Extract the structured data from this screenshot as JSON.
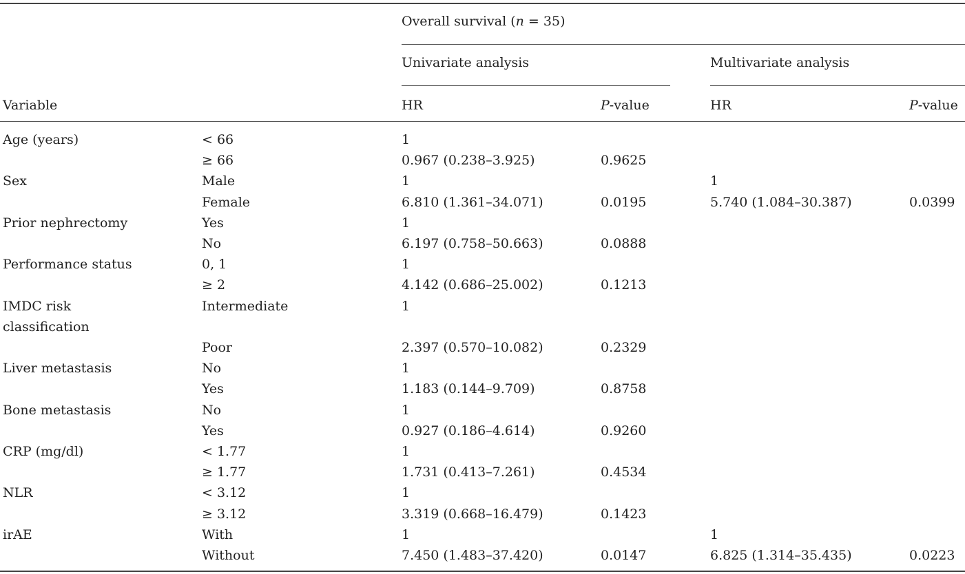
{
  "header": {
    "group_prefix": "Overall survival (",
    "group_n": "n",
    "group_suffix": " = 35)",
    "univariate": "Univariate analysis",
    "multivariate": "Multivariate analysis",
    "variable": "Variable",
    "hr": "HR",
    "p_italic": "P",
    "p_rest": "-value"
  },
  "rows": [
    {
      "variable": "Age (years)",
      "level": "< 66",
      "uni_hr": "1",
      "uni_p": "",
      "multi_hr": "",
      "multi_p": ""
    },
    {
      "variable": "",
      "level": "≥ 66",
      "uni_hr": "0.967 (0.238–3.925)",
      "uni_p": "0.9625",
      "multi_hr": "",
      "multi_p": ""
    },
    {
      "variable": "Sex",
      "level": "Male",
      "uni_hr": "1",
      "uni_p": "",
      "multi_hr": "1",
      "multi_p": ""
    },
    {
      "variable": "",
      "level": "Female",
      "uni_hr": "6.810 (1.361–34.071)",
      "uni_p": "0.0195",
      "multi_hr": "5.740 (1.084–30.387)",
      "multi_p": "0.0399"
    },
    {
      "variable": "Prior nephrectomy",
      "level": "Yes",
      "uni_hr": "1",
      "uni_p": "",
      "multi_hr": "",
      "multi_p": ""
    },
    {
      "variable": "",
      "level": "No",
      "uni_hr": "6.197 (0.758–50.663)",
      "uni_p": "0.0888",
      "multi_hr": "",
      "multi_p": ""
    },
    {
      "variable": "Performance status",
      "level": "0, 1",
      "uni_hr": "1",
      "uni_p": "",
      "multi_hr": "",
      "multi_p": ""
    },
    {
      "variable": "",
      "level": "≥ 2",
      "uni_hr": "4.142 (0.686–25.002)",
      "uni_p": "0.1213",
      "multi_hr": "",
      "multi_p": ""
    },
    {
      "variable": "IMDC risk",
      "level": "Intermediate",
      "uni_hr": "1",
      "uni_p": "",
      "multi_hr": "",
      "multi_p": ""
    },
    {
      "variable": "classification",
      "level": "",
      "uni_hr": "",
      "uni_p": "",
      "multi_hr": "",
      "multi_p": ""
    },
    {
      "variable": "",
      "level": "Poor",
      "uni_hr": "2.397 (0.570–10.082)",
      "uni_p": "0.2329",
      "multi_hr": "",
      "multi_p": ""
    },
    {
      "variable": "Liver metastasis",
      "level": "No",
      "uni_hr": "1",
      "uni_p": "",
      "multi_hr": "",
      "multi_p": ""
    },
    {
      "variable": "",
      "level": "Yes",
      "uni_hr": "1.183 (0.144–9.709)",
      "uni_p": "0.8758",
      "multi_hr": "",
      "multi_p": ""
    },
    {
      "variable": "Bone metastasis",
      "level": "No",
      "uni_hr": "1",
      "uni_p": "",
      "multi_hr": "",
      "multi_p": ""
    },
    {
      "variable": "",
      "level": "Yes",
      "uni_hr": "0.927 (0.186–4.614)",
      "uni_p": "0.9260",
      "multi_hr": "",
      "multi_p": ""
    },
    {
      "variable": "CRP (mg/dl)",
      "level": "< 1.77",
      "uni_hr": "1",
      "uni_p": "",
      "multi_hr": "",
      "multi_p": ""
    },
    {
      "variable": "",
      "level": "≥ 1.77",
      "uni_hr": "1.731 (0.413–7.261)",
      "uni_p": "0.4534",
      "multi_hr": "",
      "multi_p": ""
    },
    {
      "variable": "NLR",
      "level": "< 3.12",
      "uni_hr": "1",
      "uni_p": "",
      "multi_hr": "",
      "multi_p": ""
    },
    {
      "variable": "",
      "level": "≥ 3.12",
      "uni_hr": "3.319 (0.668–16.479)",
      "uni_p": "0.1423",
      "multi_hr": "",
      "multi_p": ""
    },
    {
      "variable": "irAE",
      "level": "With",
      "uni_hr": "1",
      "uni_p": "",
      "multi_hr": "1",
      "multi_p": ""
    },
    {
      "variable": "",
      "level": "Without",
      "uni_hr": "7.450 (1.483–37.420)",
      "uni_p": "0.0147",
      "multi_hr": "6.825 (1.314–35.435)",
      "multi_p": "0.0223"
    }
  ]
}
